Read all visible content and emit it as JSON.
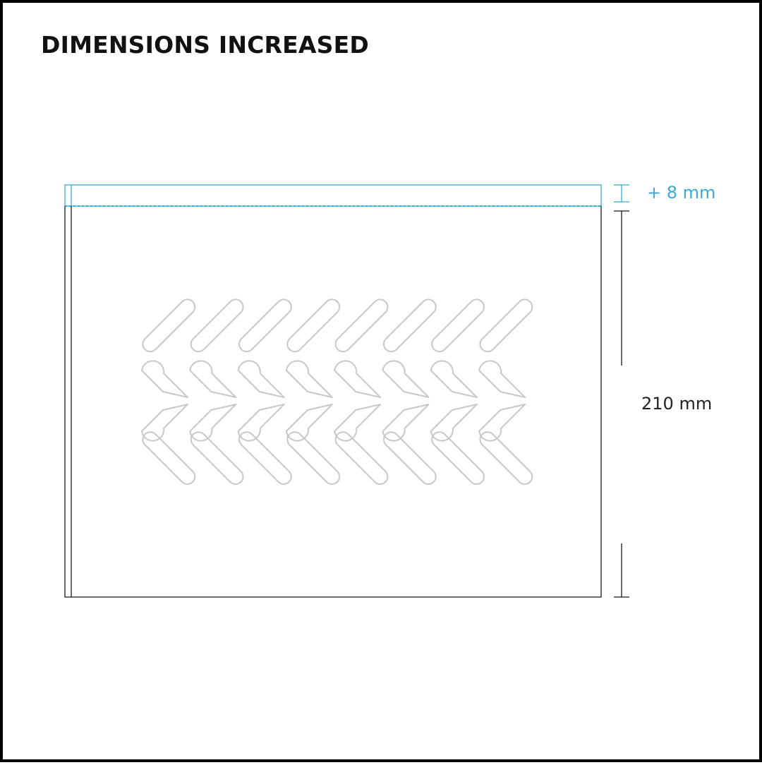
{
  "header": {
    "title": "DIMENSIONS INCREASED"
  },
  "dimensions": {
    "increase_label": "+ 8 mm",
    "height_label": "210 mm"
  },
  "colors": {
    "outline": "#111111",
    "accent": "#3aaad4",
    "pattern": "#c8c8c8"
  },
  "pattern": {
    "motif": "chevron-pattern",
    "columns": 8
  }
}
